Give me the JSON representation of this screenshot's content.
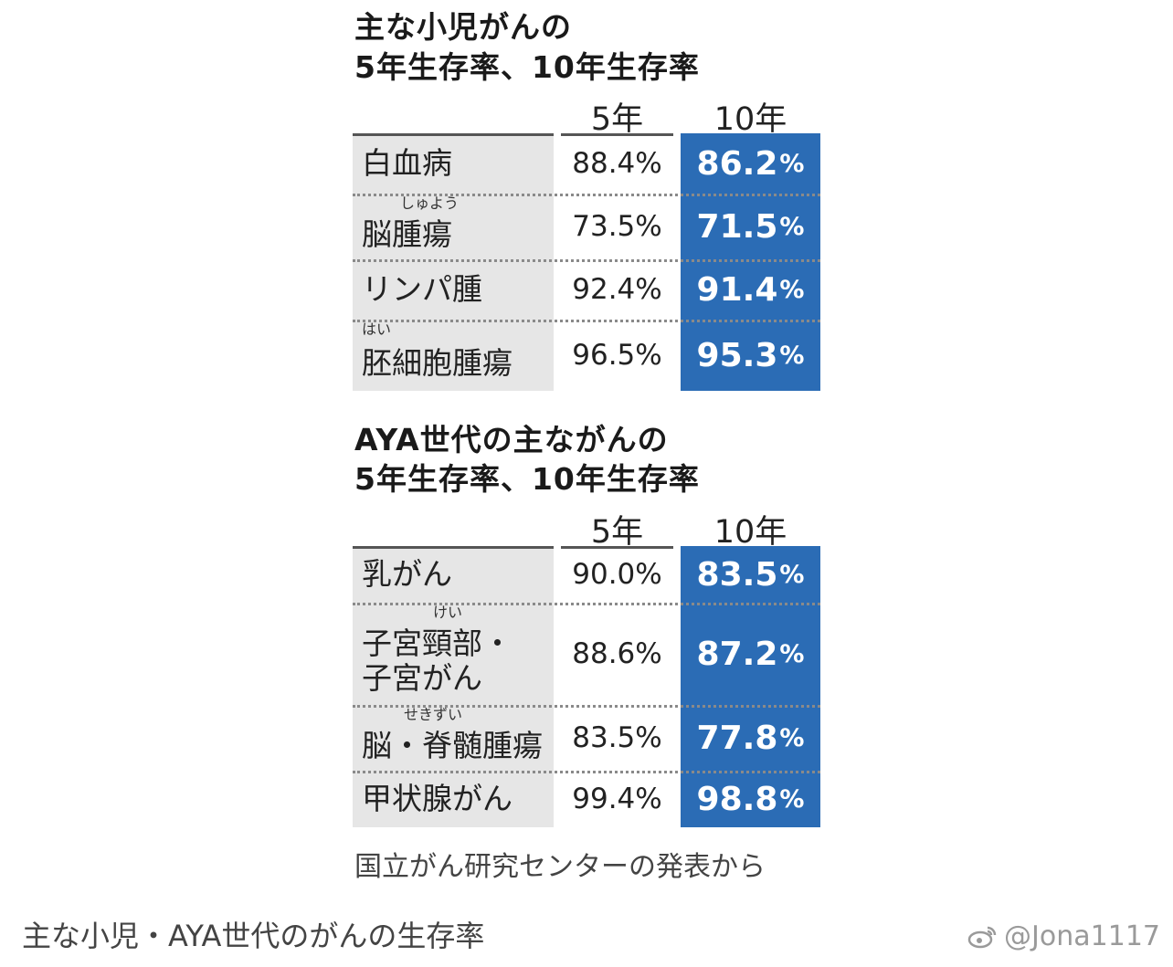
{
  "section1": {
    "title_line1": "主な小児がんの",
    "title_line2": "5年生存率、10年生存率",
    "col_5": "5年",
    "col_10": "10年",
    "rows": [
      {
        "lines": [
          "白血病"
        ],
        "ruby": "",
        "y5": "88.4%",
        "y10": "86.2",
        "pct": "%"
      },
      {
        "lines": [
          "脳腫瘍"
        ],
        "ruby": "しゅよう",
        "y5": "73.5%",
        "y10": "71.5",
        "pct": "%"
      },
      {
        "lines": [
          "リンパ腫"
        ],
        "ruby": "",
        "y5": "92.4%",
        "y10": "91.4",
        "pct": "%"
      },
      {
        "lines": [
          "胚細胞腫瘍"
        ],
        "ruby": "はい",
        "y5": "96.5%",
        "y10": "95.3",
        "pct": "%"
      }
    ]
  },
  "section2": {
    "title_line1": "AYA世代の主ながんの",
    "title_line2": "5年生存率、10年生存率",
    "col_5": "5年",
    "col_10": "10年",
    "rows": [
      {
        "lines": [
          "乳がん"
        ],
        "ruby": "",
        "y5": "90.0%",
        "y10": "83.5",
        "pct": "%"
      },
      {
        "lines": [
          "子宮頸部・",
          "子宮がん"
        ],
        "ruby": "けい",
        "y5": "88.6%",
        "y10": "87.2",
        "pct": "%"
      },
      {
        "lines": [
          "脳・脊髄腫瘍"
        ],
        "ruby": "せきずい",
        "y5": "83.5%",
        "y10": "77.8",
        "pct": "%"
      },
      {
        "lines": [
          "甲状腺がん"
        ],
        "ruby": "",
        "y5": "99.4%",
        "y10": "98.8",
        "pct": "%"
      }
    ]
  },
  "source": "国立がん研究センターの発表から",
  "caption": "主な小児・AYA世代のがんの生存率",
  "watermark": "@Jona1117",
  "colors": {
    "highlight": "#2b6cb5",
    "name_bg": "#e6e6e6"
  }
}
